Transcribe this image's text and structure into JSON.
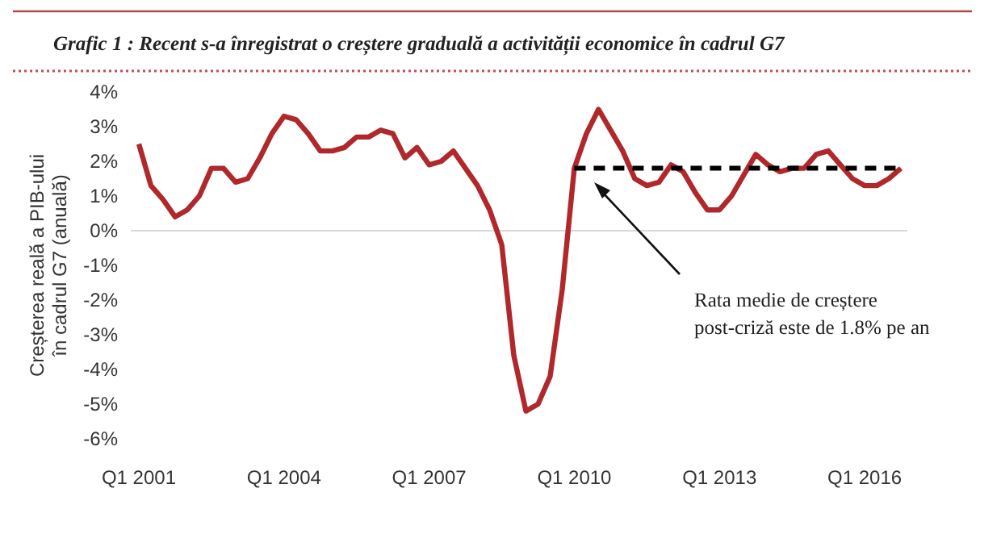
{
  "chart_data": {
    "type": "line",
    "title": "Grafic 1 : Recent s-a înregistrat o creștere graduală a activității economice în cadrul G7",
    "ylabel": "Creșterea reală a PIB-ului în cadrul G7 (anuală)",
    "categories": [
      "Q1 2001",
      null,
      null,
      null,
      null,
      null,
      null,
      null,
      null,
      null,
      null,
      null,
      "Q1 2004",
      null,
      null,
      null,
      null,
      null,
      null,
      null,
      null,
      null,
      null,
      null,
      "Q1 2007",
      null,
      null,
      null,
      null,
      null,
      null,
      null,
      null,
      null,
      null,
      null,
      "Q1 2010",
      null,
      null,
      null,
      null,
      null,
      null,
      null,
      null,
      null,
      null,
      null,
      "Q1 2013",
      null,
      null,
      null,
      null,
      null,
      null,
      null,
      null,
      null,
      null,
      null,
      "Q1 2016",
      null,
      null,
      null
    ],
    "series": [
      {
        "color": "#b0282c",
        "values": [
          2.5,
          1.3,
          0.9,
          0.4,
          0.6,
          1.0,
          1.8,
          1.8,
          1.4,
          1.5,
          2.1,
          2.8,
          3.3,
          3.2,
          2.8,
          2.3,
          2.3,
          2.4,
          2.7,
          2.7,
          2.9,
          2.8,
          2.1,
          2.4,
          1.9,
          2.0,
          2.3,
          1.8,
          1.3,
          0.6,
          -0.4,
          -3.6,
          -5.2,
          -5.0,
          -4.2,
          -1.7,
          1.8,
          2.8,
          3.5,
          2.9,
          2.3,
          1.5,
          1.3,
          1.4,
          1.9,
          1.7,
          1.1,
          0.6,
          0.6,
          1.0,
          1.6,
          2.2,
          1.9,
          1.7,
          1.8,
          1.8,
          2.2,
          2.3,
          1.9,
          1.5,
          1.3,
          1.3,
          1.5,
          1.8
        ]
      },
      {
        "type": "line",
        "line_style": "dashed",
        "color": "#000000",
        "values": [
          null,
          null,
          null,
          null,
          null,
          null,
          null,
          null,
          null,
          null,
          null,
          null,
          null,
          null,
          null,
          null,
          null,
          null,
          null,
          null,
          null,
          null,
          null,
          null,
          null,
          null,
          null,
          null,
          null,
          null,
          null,
          null,
          null,
          null,
          null,
          null,
          1.8,
          1.8,
          1.8,
          1.8,
          1.8,
          1.8,
          1.8,
          1.8,
          1.8,
          1.8,
          1.8,
          1.8,
          1.8,
          1.8,
          1.8,
          1.8,
          1.8,
          1.8,
          1.8,
          1.8,
          1.8,
          1.8,
          1.8,
          1.8,
          1.8,
          1.8,
          1.8,
          1.8
        ]
      }
    ],
    "ylim": [
      -6,
      4
    ],
    "yticks": [
      {
        "value": -6,
        "label": "-6%"
      },
      {
        "value": -5,
        "label": "-5%"
      },
      {
        "value": -4,
        "label": "-4%"
      },
      {
        "value": -3,
        "label": "-3%"
      },
      {
        "value": -2,
        "label": "-2%"
      },
      {
        "value": -1,
        "label": "-1%"
      },
      {
        "value": 0,
        "label": "0%"
      },
      {
        "value": 1,
        "label": "1%"
      },
      {
        "value": 2,
        "label": "2%"
      },
      {
        "value": 3,
        "label": "3%"
      },
      {
        "value": 4,
        "label": "4%"
      }
    ],
    "annotations": [
      "Rata medie de creștere post-criză este de 1.8% pe an"
    ],
    "ref_lines": [
      {
        "axis": "y",
        "value": 0,
        "color": "#d8d8d8"
      }
    ],
    "line_style": "solid"
  }
}
